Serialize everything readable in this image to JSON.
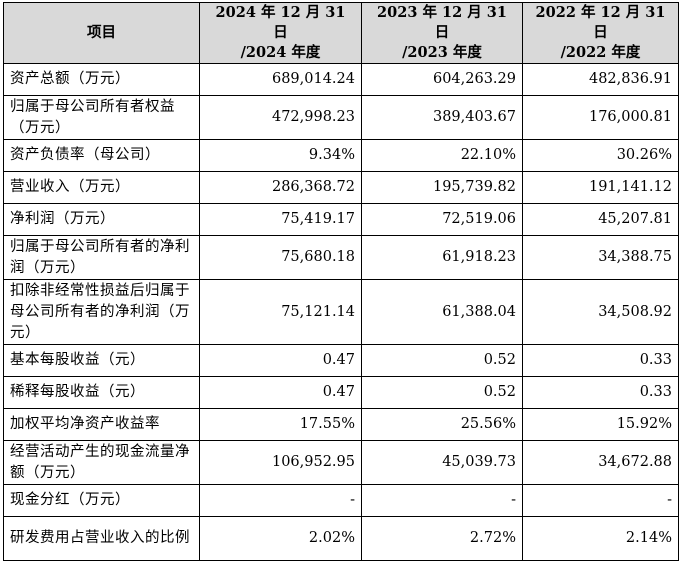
{
  "header": {
    "item": "项目",
    "years": [
      {
        "line1": "2024 年 12 月 31 日",
        "line2": "/2024 年度"
      },
      {
        "line1": "2023 年 12 月 31 日",
        "line2": "/2023 年度"
      },
      {
        "line1": "2022 年 12 月 31 日",
        "line2": "/2022 年度"
      }
    ]
  },
  "rows": [
    {
      "label": "资产总额（万元）",
      "values": [
        "689,014.24",
        "604,263.29",
        "482,836.91"
      ]
    },
    {
      "label": "归属于母公司所有者权益（万元）",
      "values": [
        "472,998.23",
        "389,403.67",
        "176,000.81"
      ]
    },
    {
      "label": "资产负债率（母公司）",
      "values": [
        "9.34%",
        "22.10%",
        "30.26%"
      ]
    },
    {
      "label": "营业收入（万元）",
      "values": [
        "286,368.72",
        "195,739.82",
        "191,141.12"
      ]
    },
    {
      "label": "净利润（万元）",
      "values": [
        "75,419.17",
        "72,519.06",
        "45,207.81"
      ]
    },
    {
      "label": "归属于母公司所有者的净利润（万元）",
      "values": [
        "75,680.18",
        "61,918.23",
        "34,388.75"
      ]
    },
    {
      "label": "扣除非经常性损益后归属于母公司所有者的净利润（万元）",
      "values": [
        "75,121.14",
        "61,388.04",
        "34,508.92"
      ]
    },
    {
      "label": "基本每股收益（元）",
      "values": [
        "0.47",
        "0.52",
        "0.33"
      ]
    },
    {
      "label": "稀释每股收益（元）",
      "values": [
        "0.47",
        "0.52",
        "0.33"
      ]
    },
    {
      "label": "加权平均净资产收益率",
      "values": [
        "17.55%",
        "25.56%",
        "15.92%"
      ]
    },
    {
      "label": "经营活动产生的现金流量净额（万元）",
      "values": [
        "106,952.95",
        "45,039.73",
        "34,672.88"
      ]
    },
    {
      "label": "现金分红（万元）",
      "values": [
        "-",
        "-",
        "-"
      ]
    },
    {
      "label": "研发费用占营业收入的比例",
      "values": [
        "2.02%",
        "2.72%",
        "2.14%"
      ]
    }
  ]
}
